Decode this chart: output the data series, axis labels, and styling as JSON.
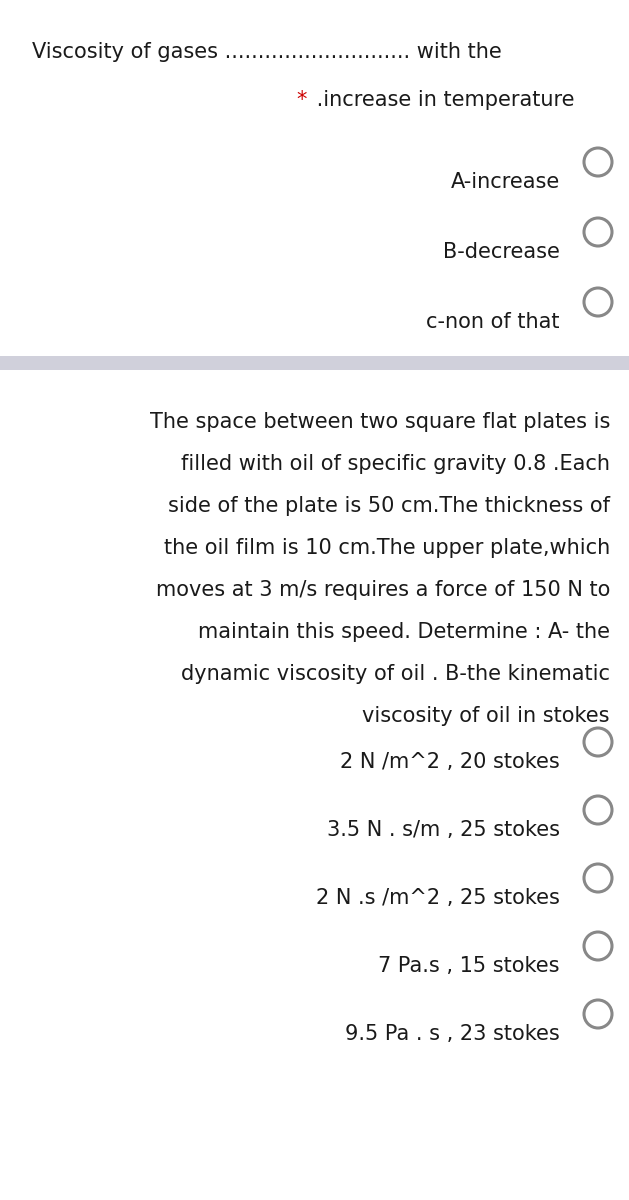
{
  "bg_color": "#ffffff",
  "q1_line1": "Viscosity of gases ............................ with the",
  "q1_line2_star": "*",
  "q1_line2_text": " .increase in temperature",
  "q1_options": [
    "A-increase",
    "B-decrease",
    "c-non of that"
  ],
  "separator_color": "#d0d0db",
  "question2_text": [
    "The space between two square flat plates is",
    "filled with oil of specific gravity 0.8 .Each",
    "side of the plate is 50 cm.The thickness of",
    "the oil film is 10 cm.The upper plate,which",
    "moves at 3 m/s requires a force of 150 N to",
    "maintain this speed. Determine : A- the",
    "dynamic viscosity of oil . B-the kinematic",
    "viscosity of oil in stokes"
  ],
  "q2_options": [
    "2 N /m^2 , 20 stokes",
    "3.5 N . s/m , 25 stokes",
    "2 N .s /m^2 , 25 stokes",
    "7 Pa.s , 15 stokes",
    "9.5 Pa . s , 23 stokes"
  ],
  "text_color": "#1a1a1a",
  "star_color": "#cc0000",
  "circle_color": "#888888",
  "font_size_main": 15.0,
  "font_size_q2": 15.0,
  "fig_width": 6.29,
  "fig_height": 12.0,
  "dpi": 100
}
